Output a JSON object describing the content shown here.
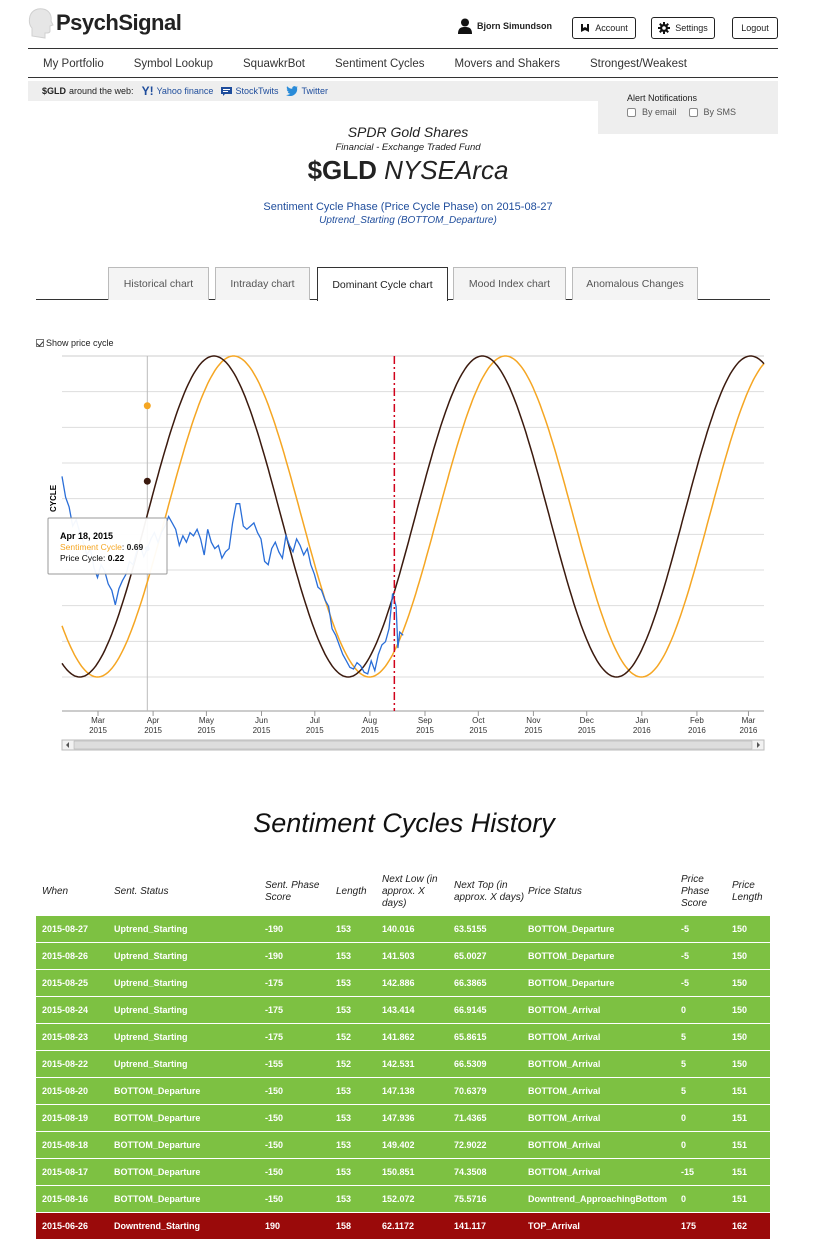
{
  "app": {
    "name": "PsychSignal"
  },
  "header": {
    "user_name": "Bjorn Simundson",
    "account_label": "Account",
    "settings_label": "Settings",
    "logout_label": "Logout"
  },
  "nav": {
    "items": [
      {
        "label": "My Portfolio"
      },
      {
        "label": "Symbol Lookup"
      },
      {
        "label": "SquawkrBot"
      },
      {
        "label": "Sentiment Cycles"
      },
      {
        "label": "Movers and Shakers"
      },
      {
        "label": "Strongest/Weakest"
      }
    ]
  },
  "webbar": {
    "symbol": "$GLD",
    "around": "around the web:",
    "links": [
      {
        "label": "Yahoo finance"
      },
      {
        "label": "StockTwits"
      },
      {
        "label": "Twitter"
      }
    ]
  },
  "alerts": {
    "title": "Alert Notifications",
    "by_email": "By email",
    "by_sms": "By SMS"
  },
  "security": {
    "name": "SPDR Gold Shares",
    "sector": "Financial - Exchange Traded Fund",
    "symbol": "$GLD",
    "exchange": "NYSEArca",
    "phase_line": "Sentiment Cycle Phase (Price Cycle Phase) on 2015-08-27",
    "phase_value": "Uptrend_Starting (BOTTOM_Departure)"
  },
  "tabs": [
    {
      "label": "Historical chart"
    },
    {
      "label": "Intraday chart"
    },
    {
      "label": "Dominant Cycle chart"
    },
    {
      "label": "Mood Index chart"
    },
    {
      "label": "Anomalous Changes"
    }
  ],
  "active_tab": "Dominant Cycle chart",
  "show_price_cycle": "Show price cycle",
  "colors": {
    "sentiment": "#f5a623",
    "price": "#3b1a0e",
    "sentiment_data": "#2a6ed8",
    "marker": "#d0021b",
    "row_green": "#7dc142",
    "row_red": "#9a0a0a"
  },
  "chart_data": {
    "type": "line",
    "ylabel": "CYCLE",
    "x_ticks": [
      {
        "month": "Mar",
        "year": "2015"
      },
      {
        "month": "Apr",
        "year": "2015"
      },
      {
        "month": "May",
        "year": "2015"
      },
      {
        "month": "Jun",
        "year": "2015"
      },
      {
        "month": "Jul",
        "year": "2015"
      },
      {
        "month": "Aug",
        "year": "2015"
      },
      {
        "month": "Sep",
        "year": "2015"
      },
      {
        "month": "Oct",
        "year": "2015"
      },
      {
        "month": "Nov",
        "year": "2015"
      },
      {
        "month": "Dec",
        "year": "2015"
      },
      {
        "month": "Jan",
        "year": "2016"
      },
      {
        "month": "Feb",
        "year": "2016"
      },
      {
        "month": "Mar",
        "year": "2016"
      }
    ],
    "x_range_days": [
      0,
      395
    ],
    "y_range": [
      -1,
      1
    ],
    "today_marker_day": 187,
    "series": [
      {
        "name": "Sentiment Cycle",
        "type": "sinusoid",
        "min_day": 20,
        "max_day": 96,
        "period_days": 153
      },
      {
        "name": "Price Cycle",
        "type": "sinusoid",
        "min_day": 10,
        "max_day": 85,
        "period_days": 151
      },
      {
        "name": "Sentiment",
        "type": "line",
        "points": [
          [
            0,
            0.25
          ],
          [
            2,
            0.12
          ],
          [
            4,
            0.06
          ],
          [
            6,
            -0.06
          ],
          [
            8,
            -0.02
          ],
          [
            10,
            -0.1
          ],
          [
            12,
            -0.16
          ],
          [
            14,
            -0.24
          ],
          [
            16,
            -0.2
          ],
          [
            18,
            -0.32
          ],
          [
            20,
            -0.38
          ],
          [
            22,
            -0.3
          ],
          [
            24,
            -0.34
          ],
          [
            26,
            -0.42
          ],
          [
            28,
            -0.46
          ],
          [
            30,
            -0.55
          ],
          [
            32,
            -0.45
          ],
          [
            34,
            -0.4
          ],
          [
            36,
            -0.36
          ],
          [
            38,
            -0.28
          ],
          [
            40,
            -0.3
          ],
          [
            42,
            -0.22
          ],
          [
            44,
            -0.18
          ],
          [
            46,
            -0.25
          ],
          [
            48,
            -0.2
          ],
          [
            50,
            -0.14
          ],
          [
            52,
            -0.1
          ],
          [
            54,
            -0.16
          ],
          [
            56,
            -0.1
          ],
          [
            58,
            -0.06
          ],
          [
            60,
            0
          ],
          [
            62,
            -0.04
          ],
          [
            64,
            -0.08
          ],
          [
            66,
            -0.18
          ],
          [
            68,
            -0.12
          ],
          [
            70,
            -0.16
          ],
          [
            72,
            -0.1
          ],
          [
            74,
            -0.12
          ],
          [
            76,
            -0.08
          ],
          [
            78,
            -0.14
          ],
          [
            80,
            -0.24
          ],
          [
            82,
            -0.08
          ],
          [
            84,
            -0.16
          ],
          [
            86,
            -0.2
          ],
          [
            88,
            -0.18
          ],
          [
            90,
            -0.26
          ],
          [
            92,
            -0.22
          ],
          [
            94,
            -0.2
          ],
          [
            96,
            -0.04
          ],
          [
            98,
            0.08
          ],
          [
            100,
            0.08
          ],
          [
            102,
            -0.06
          ],
          [
            104,
            -0.08
          ],
          [
            106,
            -0.06
          ],
          [
            108,
            -0.04
          ],
          [
            110,
            -0.1
          ],
          [
            112,
            -0.14
          ],
          [
            114,
            -0.28
          ],
          [
            116,
            -0.3
          ],
          [
            118,
            -0.2
          ],
          [
            120,
            -0.16
          ],
          [
            122,
            -0.22
          ],
          [
            124,
            -0.26
          ],
          [
            126,
            -0.12
          ],
          [
            128,
            -0.18
          ],
          [
            130,
            -0.22
          ],
          [
            132,
            -0.14
          ],
          [
            134,
            -0.18
          ],
          [
            136,
            -0.24
          ],
          [
            138,
            -0.2
          ],
          [
            140,
            -0.3
          ],
          [
            142,
            -0.36
          ],
          [
            144,
            -0.44
          ],
          [
            146,
            -0.46
          ],
          [
            148,
            -0.52
          ],
          [
            150,
            -0.56
          ],
          [
            152,
            -0.7
          ],
          [
            154,
            -0.74
          ],
          [
            156,
            -0.8
          ],
          [
            158,
            -0.86
          ],
          [
            160,
            -0.9
          ],
          [
            162,
            -0.94
          ],
          [
            164,
            -0.95
          ],
          [
            166,
            -0.91
          ],
          [
            168,
            -0.93
          ],
          [
            170,
            -0.97
          ],
          [
            172,
            -0.98
          ],
          [
            174,
            -0.9
          ],
          [
            176,
            -0.96
          ],
          [
            178,
            -0.86
          ],
          [
            180,
            -0.8
          ],
          [
            182,
            -0.78
          ],
          [
            184,
            -0.7
          ],
          [
            186,
            -0.48
          ],
          [
            188,
            -0.56
          ],
          [
            189,
            -0.82
          ],
          [
            190,
            -0.72
          ],
          [
            192,
            -0.74
          ]
        ]
      }
    ],
    "tooltip": {
      "date": "Apr 18, 2015",
      "sentiment_label": "Sentiment Cycle",
      "sentiment_value": "0.69",
      "price_label": "Price Cycle",
      "price_value": "0.22"
    }
  },
  "history": {
    "title": "Sentiment Cycles History",
    "columns": [
      "When",
      "Sent. Status",
      "Sent. Phase Score",
      "Length",
      "Next Low (in approx. X days)",
      "Next Top (in approx. X days)",
      "Price Status",
      "Price Phase Score",
      "Price Length"
    ],
    "rows": [
      {
        "when": "2015-08-27",
        "status": "Uptrend_Starting",
        "score": "-190",
        "length": "153",
        "next_low": "140.016",
        "next_top": "63.5155",
        "price_status": "BOTTOM_Departure",
        "price_score": "-5",
        "price_length": "150",
        "color": "green"
      },
      {
        "when": "2015-08-26",
        "status": "Uptrend_Starting",
        "score": "-190",
        "length": "153",
        "next_low": "141.503",
        "next_top": "65.0027",
        "price_status": "BOTTOM_Departure",
        "price_score": "-5",
        "price_length": "150",
        "color": "green"
      },
      {
        "when": "2015-08-25",
        "status": "Uptrend_Starting",
        "score": "-175",
        "length": "153",
        "next_low": "142.886",
        "next_top": "66.3865",
        "price_status": "BOTTOM_Departure",
        "price_score": "-5",
        "price_length": "150",
        "color": "green"
      },
      {
        "when": "2015-08-24",
        "status": "Uptrend_Starting",
        "score": "-175",
        "length": "153",
        "next_low": "143.414",
        "next_top": "66.9145",
        "price_status": "BOTTOM_Arrival",
        "price_score": "0",
        "price_length": "150",
        "color": "green"
      },
      {
        "when": "2015-08-23",
        "status": "Uptrend_Starting",
        "score": "-175",
        "length": "152",
        "next_low": "141.862",
        "next_top": "65.8615",
        "price_status": "BOTTOM_Arrival",
        "price_score": "5",
        "price_length": "150",
        "color": "green"
      },
      {
        "when": "2015-08-22",
        "status": "Uptrend_Starting",
        "score": "-155",
        "length": "152",
        "next_low": "142.531",
        "next_top": "66.5309",
        "price_status": "BOTTOM_Arrival",
        "price_score": "5",
        "price_length": "150",
        "color": "green"
      },
      {
        "when": "2015-08-20",
        "status": "BOTTOM_Departure",
        "score": "-150",
        "length": "153",
        "next_low": "147.138",
        "next_top": "70.6379",
        "price_status": "BOTTOM_Arrival",
        "price_score": "5",
        "price_length": "151",
        "color": "green"
      },
      {
        "when": "2015-08-19",
        "status": "BOTTOM_Departure",
        "score": "-150",
        "length": "153",
        "next_low": "147.936",
        "next_top": "71.4365",
        "price_status": "BOTTOM_Arrival",
        "price_score": "0",
        "price_length": "151",
        "color": "green"
      },
      {
        "when": "2015-08-18",
        "status": "BOTTOM_Departure",
        "score": "-150",
        "length": "153",
        "next_low": "149.402",
        "next_top": "72.9022",
        "price_status": "BOTTOM_Arrival",
        "price_score": "0",
        "price_length": "151",
        "color": "green"
      },
      {
        "when": "2015-08-17",
        "status": "BOTTOM_Departure",
        "score": "-150",
        "length": "153",
        "next_low": "150.851",
        "next_top": "74.3508",
        "price_status": "BOTTOM_Arrival",
        "price_score": "-15",
        "price_length": "151",
        "color": "green"
      },
      {
        "when": "2015-08-16",
        "status": "BOTTOM_Departure",
        "score": "-150",
        "length": "153",
        "next_low": "152.072",
        "next_top": "75.5716",
        "price_status": "Downtrend_ApproachingBottom",
        "price_score": "0",
        "price_length": "151",
        "color": "green"
      },
      {
        "when": "2015-06-26",
        "status": "Downtrend_Starting",
        "score": "190",
        "length": "158",
        "next_low": "62.1172",
        "next_top": "141.117",
        "price_status": "TOP_Arrival",
        "price_score": "175",
        "price_length": "162",
        "color": "red"
      }
    ]
  }
}
